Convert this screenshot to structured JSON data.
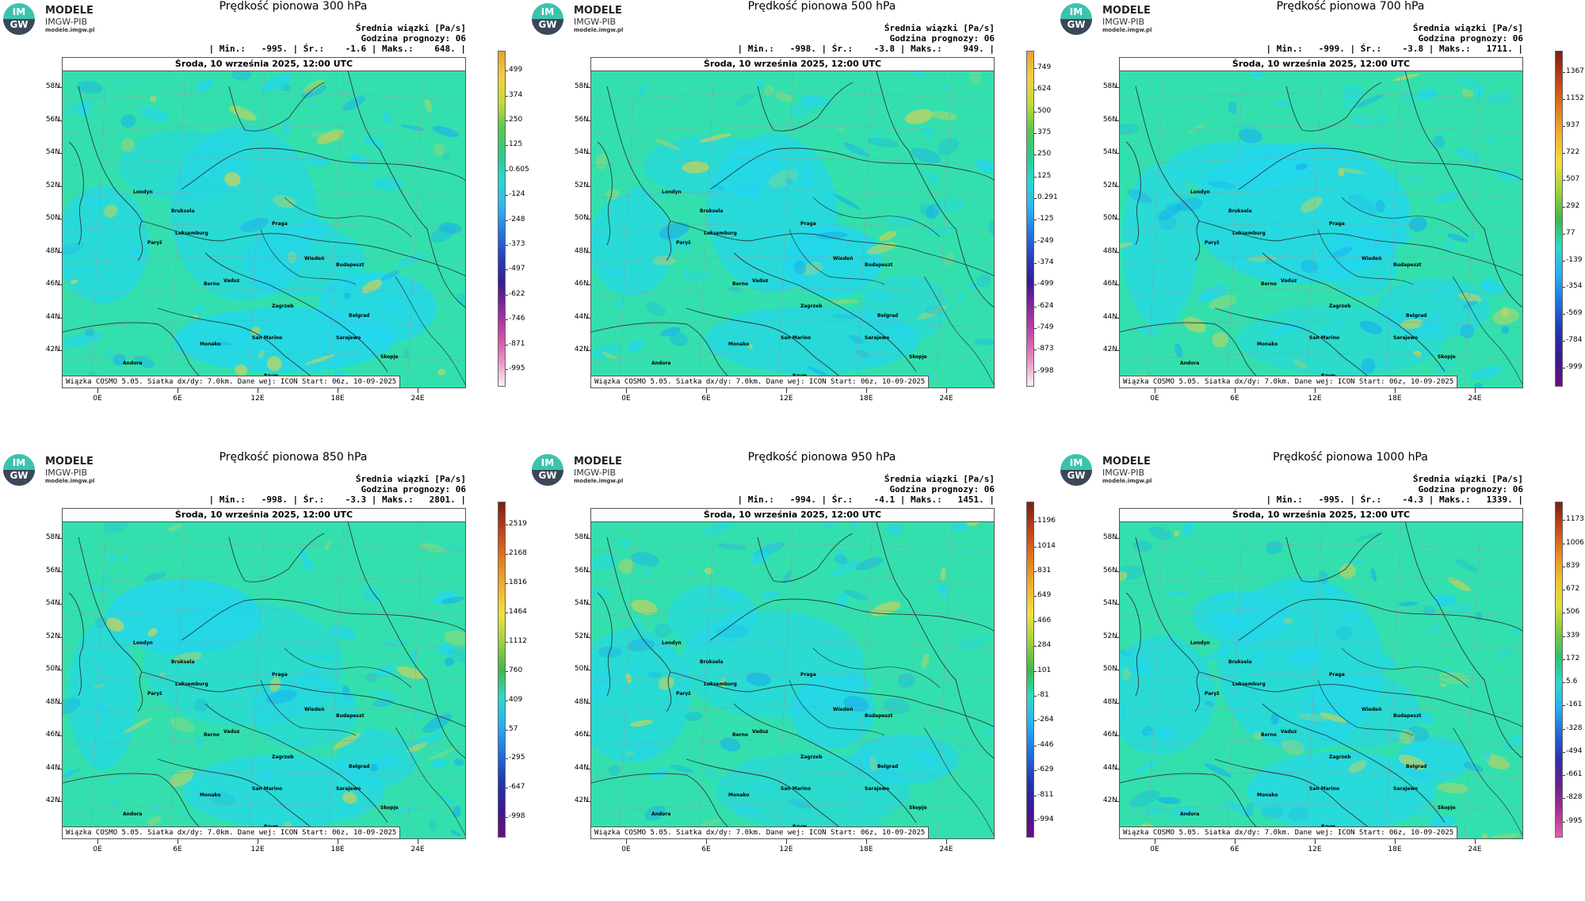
{
  "logo": {
    "name": "MODELE",
    "sub": "IMGW-PIB",
    "url": "modele.imgw.pl",
    "badge_top": "IM",
    "badge_bottom": "GW"
  },
  "common": {
    "subtitle": "Średnia wiązki [Pa/s]",
    "forecast_hour": "Godzina prognozy: 06",
    "date": "Środa, 10 września 2025, 12:00 UTC",
    "source": "Wiązka COSMO 5.05. Siatka dx/dy: 7.0km. Dane wej: ICON Start: 06z, 10-09-2025",
    "lat_labels": [
      "58N",
      "56N",
      "54N",
      "52N",
      "50N",
      "48N",
      "46N",
      "44N",
      "42N"
    ],
    "lon_labels": [
      "0E",
      "6E",
      "12E",
      "18E",
      "24E"
    ],
    "cities": [
      "Londyn",
      "Bruksela",
      "Paryż",
      "Luksemburg",
      "Praga",
      "Wiedeń",
      "Budapeszt",
      "Berno",
      "Vaduz",
      "Zagrzeb",
      "Belgrad",
      "Monako",
      "San Marino",
      "Sarajewo",
      "Andora",
      "Skopje",
      "Rzym"
    ],
    "colors": {
      "field_base": "#33e0ad",
      "field_low": "#22d6f0",
      "field_dark": "#1ab4e8",
      "field_pos": "#c8d25a",
      "border": "#2a3a40"
    }
  },
  "panels": [
    {
      "title": "Prędkość pionowa 300 hPa",
      "stats": "| Min.:   -995. | Śr.:    -1.6 | Maks.:    648. |",
      "scale": [
        "499",
        "374",
        "250",
        "125",
        "0.605",
        "-124",
        "-248",
        "-373",
        "-497",
        "-622",
        "-746",
        "-871",
        "-995"
      ],
      "scheme": "a"
    },
    {
      "title": "Prędkość pionowa 500 hPa",
      "stats": "| Min.:   -998. | Śr.:    -3.8 | Maks.:    949. |",
      "scale": [
        "749",
        "624",
        "500",
        "375",
        "250",
        "125",
        "0.291",
        "-125",
        "-249",
        "-374",
        "-499",
        "-624",
        "-749",
        "-873",
        "-998"
      ],
      "scheme": "a"
    },
    {
      "title": "Prędkość pionowa 700 hPa",
      "stats": "| Min.:   -999. | Śr.:    -3.8 | Maks.:   1711. |",
      "scale": [
        "1367",
        "1152",
        "937",
        "722",
        "507",
        "292",
        "77",
        "-139",
        "-354",
        "-569",
        "-784",
        "-999"
      ],
      "scheme": "b"
    },
    {
      "title": "Prędkość pionowa 850 hPa",
      "stats": "| Min.:   -998. | Śr.:    -3.3 | Maks.:   2801. |",
      "scale": [
        "2519",
        "2168",
        "1816",
        "1464",
        "1112",
        "760",
        "409",
        "57",
        "-295",
        "-647",
        "-998"
      ],
      "scheme": "b"
    },
    {
      "title": "Prędkość pionowa 950 hPa",
      "stats": "| Min.:   -994. | Śr.:    -4.1 | Maks.:   1451. |",
      "scale": [
        "1196",
        "1014",
        "831",
        "649",
        "466",
        "284",
        "101",
        "-81",
        "-264",
        "-446",
        "-629",
        "-811",
        "-994"
      ],
      "scheme": "b"
    },
    {
      "title": "Prędkość pionowa 1000 hPa",
      "stats": "| Min.:   -995. | Śr.:    -4.3 | Maks.:   1339. |",
      "scale": [
        "1173",
        "1006",
        "839",
        "672",
        "506",
        "339",
        "172",
        "5.6",
        "-161",
        "-328",
        "-494",
        "-661",
        "-828",
        "-995"
      ],
      "scheme": "c"
    }
  ]
}
